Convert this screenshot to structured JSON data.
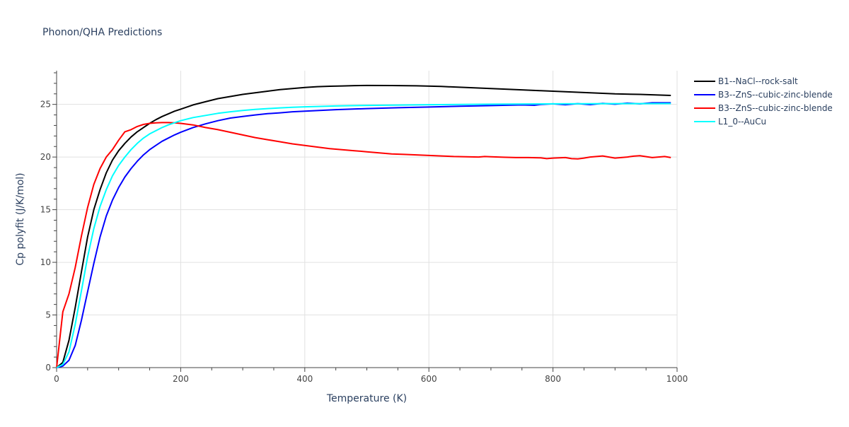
{
  "chart_data": {
    "type": "line",
    "title": "Phonon/QHA Predictions",
    "xlabel": "Temperature (K)",
    "ylabel": "Cp polyfit (J/K/mol)",
    "xlim": [
      0,
      1000
    ],
    "ylim": [
      0,
      28.2
    ],
    "xticks": [
      0,
      200,
      400,
      600,
      800,
      1000
    ],
    "yticks": [
      0,
      5,
      10,
      15,
      20,
      25
    ],
    "grid": true,
    "legend_position": "top-right",
    "series": [
      {
        "name": "B1--NaCl--rock-salt",
        "color": "#000000",
        "x": [
          0,
          10,
          20,
          30,
          40,
          50,
          60,
          70,
          80,
          90,
          100,
          110,
          120,
          130,
          140,
          150,
          160,
          170,
          180,
          190,
          200,
          220,
          240,
          260,
          280,
          300,
          320,
          340,
          360,
          380,
          400,
          420,
          440,
          460,
          480,
          500,
          540,
          580,
          620,
          660,
          700,
          740,
          780,
          820,
          860,
          900,
          940,
          990
        ],
        "y": [
          0,
          0.5,
          2.6,
          5.7,
          9.1,
          12.4,
          15.0,
          16.9,
          18.5,
          19.7,
          20.6,
          21.3,
          21.9,
          22.4,
          22.8,
          23.2,
          23.55,
          23.85,
          24.1,
          24.35,
          24.55,
          24.95,
          25.25,
          25.55,
          25.75,
          25.95,
          26.1,
          26.25,
          26.4,
          26.5,
          26.6,
          26.68,
          26.72,
          26.75,
          26.78,
          26.8,
          26.79,
          26.76,
          26.7,
          26.6,
          26.5,
          26.4,
          26.3,
          26.2,
          26.1,
          26.0,
          25.95,
          25.85
        ]
      },
      {
        "name": "B3--ZnS--cubic-zinc-blende",
        "color": "#0000ff",
        "x": [
          0,
          10,
          20,
          30,
          40,
          50,
          60,
          70,
          80,
          90,
          100,
          110,
          120,
          130,
          140,
          150,
          160,
          170,
          180,
          190,
          200,
          220,
          240,
          260,
          280,
          300,
          320,
          340,
          360,
          380,
          400,
          450,
          500,
          550,
          600,
          650,
          700,
          750,
          770,
          780,
          800,
          820,
          840,
          860,
          880,
          900,
          920,
          940,
          960,
          990
        ],
        "y": [
          0,
          0.15,
          0.7,
          2.1,
          4.5,
          7.2,
          9.9,
          12.4,
          14.4,
          15.9,
          17.1,
          18.1,
          18.9,
          19.6,
          20.2,
          20.7,
          21.1,
          21.5,
          21.8,
          22.1,
          22.35,
          22.8,
          23.15,
          23.45,
          23.7,
          23.85,
          24.0,
          24.12,
          24.2,
          24.3,
          24.35,
          24.5,
          24.6,
          24.68,
          24.75,
          24.82,
          24.88,
          24.95,
          24.92,
          25.0,
          25.05,
          24.97,
          25.07,
          24.98,
          25.1,
          25.02,
          25.12,
          25.05,
          25.15,
          25.15
        ]
      },
      {
        "name": "B3--ZnS--cubic-zinc-blende",
        "color": "#ff0000",
        "x": [
          0,
          10,
          20,
          30,
          40,
          50,
          60,
          70,
          80,
          90,
          100,
          110,
          120,
          130,
          140,
          150,
          160,
          170,
          180,
          190,
          200,
          220,
          240,
          260,
          280,
          300,
          320,
          340,
          360,
          380,
          400,
          420,
          440,
          460,
          480,
          500,
          520,
          540,
          560,
          580,
          600,
          620,
          640,
          660,
          680,
          690,
          700,
          720,
          740,
          760,
          780,
          790,
          800,
          820,
          830,
          840,
          850,
          860,
          870,
          880,
          900,
          920,
          930,
          940,
          960,
          970,
          980,
          990
        ],
        "y": [
          0,
          5.3,
          7.0,
          9.5,
          12.5,
          15.2,
          17.4,
          18.9,
          20.0,
          20.7,
          21.6,
          22.4,
          22.6,
          22.9,
          23.1,
          23.2,
          23.25,
          23.27,
          23.27,
          23.25,
          23.2,
          23.05,
          22.8,
          22.6,
          22.35,
          22.1,
          21.85,
          21.65,
          21.45,
          21.25,
          21.1,
          20.95,
          20.8,
          20.7,
          20.6,
          20.5,
          20.4,
          20.3,
          20.25,
          20.2,
          20.15,
          20.1,
          20.05,
          20.02,
          20.0,
          20.05,
          20.02,
          19.98,
          19.95,
          19.95,
          19.92,
          19.85,
          19.9,
          19.95,
          19.85,
          19.82,
          19.9,
          20.0,
          20.05,
          20.1,
          19.9,
          20.0,
          20.08,
          20.12,
          19.95,
          20.0,
          20.05,
          19.95
        ]
      },
      {
        "name": "L1_0--AuCu",
        "color": "#00ffff",
        "x": [
          0,
          10,
          20,
          30,
          40,
          50,
          60,
          70,
          80,
          90,
          100,
          110,
          120,
          130,
          140,
          150,
          160,
          170,
          180,
          190,
          200,
          220,
          240,
          260,
          280,
          300,
          320,
          340,
          360,
          380,
          400,
          450,
          500,
          550,
          600,
          650,
          700,
          750,
          800,
          850,
          900,
          950,
          990
        ],
        "y": [
          0,
          0.3,
          1.5,
          4.1,
          7.3,
          10.5,
          13.2,
          15.3,
          16.9,
          18.2,
          19.2,
          20.0,
          20.7,
          21.3,
          21.8,
          22.2,
          22.5,
          22.8,
          23.05,
          23.25,
          23.45,
          23.75,
          23.95,
          24.15,
          24.3,
          24.42,
          24.52,
          24.6,
          24.67,
          24.72,
          24.77,
          24.85,
          24.9,
          24.94,
          24.97,
          25.0,
          25.02,
          25.04,
          25.05,
          25.06,
          25.07,
          25.07,
          25.08
        ]
      }
    ]
  }
}
